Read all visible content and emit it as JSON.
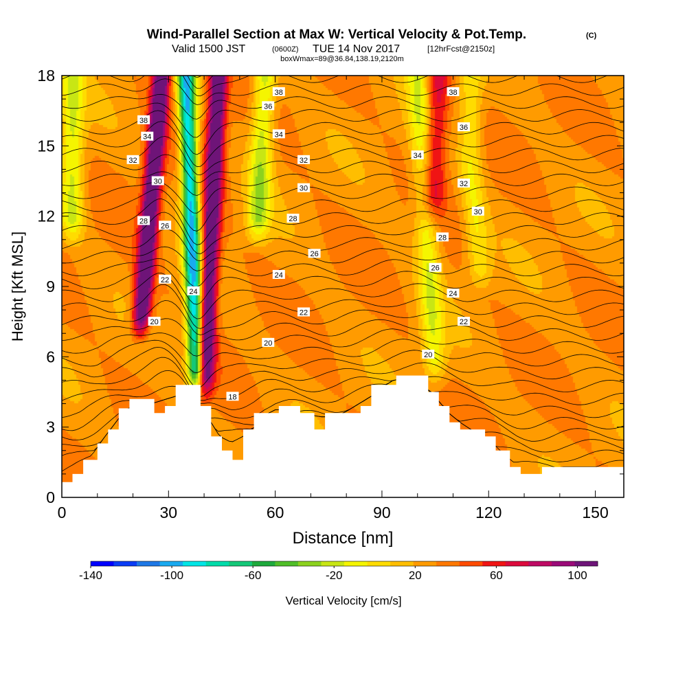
{
  "header": {
    "title": "Wind-Parallel Section at Max W: Vertical Velocity & Pot.Temp.",
    "title_mark": "(C)",
    "sub_valid": "Valid 1500 JST",
    "sub_z": "(0600Z)",
    "sub_date": "TUE 14 Nov 2017",
    "sub_fcst": "[12hrFcst@2150z]",
    "boxline": "boxWmax=89@36.84,138.19,2120m"
  },
  "colors": {
    "scale": [
      "#0000ff",
      "#0a3cf5",
      "#1e78e6",
      "#19aaf0",
      "#00e6e6",
      "#00dcaa",
      "#14c878",
      "#1eaa3c",
      "#50be28",
      "#8cd21e",
      "#c8e614",
      "#f5f500",
      "#ffdc00",
      "#ffbe00",
      "#ff9b00",
      "#ff7800",
      "#ff4b00",
      "#f01414",
      "#dc0a3c",
      "#be0a64",
      "#9b0a78",
      "#6e1478"
    ],
    "contour": "#000000",
    "terrain": "#ffffff"
  },
  "chart_data": {
    "type": "heatmap",
    "title": "Wind-Parallel Section at Max W: Vertical Velocity & Pot.Temp.",
    "xlabel": "Distance [nm]",
    "ylabel": "Height [Kft MSL]",
    "xlim": [
      0,
      158
    ],
    "ylim": [
      0,
      18
    ],
    "x_ticks": [
      0,
      30,
      60,
      90,
      120,
      150
    ],
    "y_ticks": [
      0,
      3,
      6,
      9,
      12,
      15,
      18
    ],
    "colorbar": {
      "label": "Vertical Velocity [cm/s]",
      "ticks": [
        -140,
        -100,
        -60,
        -20,
        20,
        60,
        100
      ],
      "min": -140,
      "max": 110,
      "interval": 10
    },
    "terrain_kft": [
      [
        0,
        0.65
      ],
      [
        3,
        0.65
      ],
      [
        3,
        1
      ],
      [
        6,
        1
      ],
      [
        6,
        1.6
      ],
      [
        10,
        1.6
      ],
      [
        10,
        2.3
      ],
      [
        13,
        2.3
      ],
      [
        13,
        2.9
      ],
      [
        16,
        2.9
      ],
      [
        16,
        3.8
      ],
      [
        19,
        3.8
      ],
      [
        19,
        4.2
      ],
      [
        26,
        4.2
      ],
      [
        26,
        3.6
      ],
      [
        29,
        3.6
      ],
      [
        29,
        3.9
      ],
      [
        32,
        3.9
      ],
      [
        32,
        4.8
      ],
      [
        39,
        4.8
      ],
      [
        39,
        3.9
      ],
      [
        42,
        3.9
      ],
      [
        42,
        2.6
      ],
      [
        45,
        2.6
      ],
      [
        45,
        2
      ],
      [
        48,
        2
      ],
      [
        48,
        1.6
      ],
      [
        51,
        1.6
      ],
      [
        51,
        2.9
      ],
      [
        54,
        2.9
      ],
      [
        54,
        3.6
      ],
      [
        61,
        3.6
      ],
      [
        61,
        3.9
      ],
      [
        67,
        3.9
      ],
      [
        67,
        3.6
      ],
      [
        71,
        3.6
      ],
      [
        71,
        2.9
      ],
      [
        74,
        2.9
      ],
      [
        74,
        3.6
      ],
      [
        84,
        3.6
      ],
      [
        84,
        3.9
      ],
      [
        87,
        3.9
      ],
      [
        87,
        4.8
      ],
      [
        94,
        4.8
      ],
      [
        94,
        5.2
      ],
      [
        103,
        5.2
      ],
      [
        103,
        4.5
      ],
      [
        106,
        4.5
      ],
      [
        106,
        3.9
      ],
      [
        109,
        3.9
      ],
      [
        109,
        3.2
      ],
      [
        112,
        3.2
      ],
      [
        112,
        2.9
      ],
      [
        119,
        2.9
      ],
      [
        119,
        2.6
      ],
      [
        122,
        2.6
      ],
      [
        122,
        2
      ],
      [
        126,
        2
      ],
      [
        126,
        1.3
      ],
      [
        129,
        1.3
      ],
      [
        129,
        1
      ],
      [
        135,
        1
      ],
      [
        135,
        1.3
      ],
      [
        158,
        1.3
      ]
    ],
    "updrafts": [
      {
        "x": 28,
        "x_base": 22,
        "z0": 7,
        "z1": 18,
        "w": 95
      },
      {
        "x": 44,
        "x_base": 40,
        "z0": 4.4,
        "z1": 18,
        "w": 89
      },
      {
        "x": 106,
        "x_base": 104,
        "z0": 12,
        "z1": 18,
        "w": 40
      }
    ],
    "downdrafts": [
      {
        "x": 35,
        "x_base": 38,
        "z0": 4.6,
        "z1": 18,
        "w": -110
      },
      {
        "x": 57,
        "x_base": 55,
        "z0": 11,
        "z1": 18,
        "w": -45
      },
      {
        "x": 100,
        "x_base": 105,
        "z0": 5,
        "z1": 18,
        "w": -35
      },
      {
        "x": 115,
        "x_base": 118,
        "z0": 9,
        "z1": 14,
        "w": -28
      },
      {
        "x": 3,
        "x_base": 3,
        "z0": 11,
        "z1": 18,
        "w": -40
      }
    ],
    "theta_labels": [
      {
        "text": "38",
        "x": 23,
        "z": 16.1
      },
      {
        "text": "34",
        "x": 24,
        "z": 15.4
      },
      {
        "text": "32",
        "x": 20,
        "z": 14.4
      },
      {
        "text": "30",
        "x": 27,
        "z": 13.5
      },
      {
        "text": "28",
        "x": 23,
        "z": 11.8
      },
      {
        "text": "26",
        "x": 29,
        "z": 11.6
      },
      {
        "text": "22",
        "x": 29,
        "z": 9.3
      },
      {
        "text": "20",
        "x": 26,
        "z": 7.5
      },
      {
        "text": "24",
        "x": 37,
        "z": 8.8
      },
      {
        "text": "18",
        "x": 48,
        "z": 4.3
      },
      {
        "text": "38",
        "x": 61,
        "z": 17.3
      },
      {
        "text": "36",
        "x": 58,
        "z": 16.7
      },
      {
        "text": "34",
        "x": 61,
        "z": 15.5
      },
      {
        "text": "32",
        "x": 68,
        "z": 14.4
      },
      {
        "text": "30",
        "x": 68,
        "z": 13.2
      },
      {
        "text": "28",
        "x": 65,
        "z": 11.9
      },
      {
        "text": "26",
        "x": 71,
        "z": 10.4
      },
      {
        "text": "24",
        "x": 61,
        "z": 9.5
      },
      {
        "text": "22",
        "x": 68,
        "z": 7.9
      },
      {
        "text": "20",
        "x": 58,
        "z": 6.6
      },
      {
        "text": "38",
        "x": 110,
        "z": 17.3
      },
      {
        "text": "36",
        "x": 113,
        "z": 15.8
      },
      {
        "text": "34",
        "x": 100,
        "z": 14.6
      },
      {
        "text": "32",
        "x": 113,
        "z": 13.4
      },
      {
        "text": "30",
        "x": 117,
        "z": 12.2
      },
      {
        "text": "28",
        "x": 107,
        "z": 11.1
      },
      {
        "text": "26",
        "x": 105,
        "z": 9.8
      },
      {
        "text": "24",
        "x": 110,
        "z": 8.7
      },
      {
        "text": "22",
        "x": 113,
        "z": 7.5
      },
      {
        "text": "20",
        "x": 103,
        "z": 6.1
      }
    ]
  }
}
